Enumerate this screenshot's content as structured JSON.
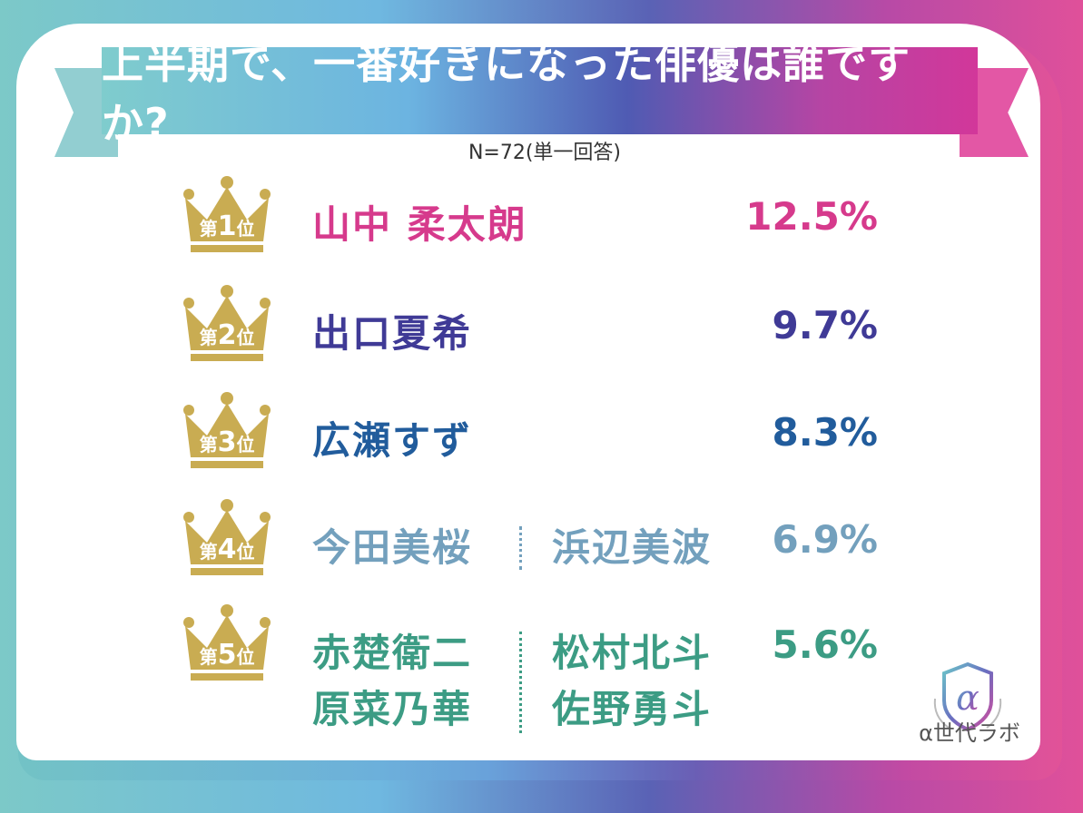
{
  "title": "上半期で、一番好きになった俳優は誰ですか?",
  "subtitle": "N=72(単一回答)",
  "colors": {
    "rank1": "#d63a8c",
    "rank2": "#3f3a96",
    "rank3": "#215c9c",
    "rank4": "#73a0bd",
    "rank5": "#3c9c84",
    "crown": "#c9ac52"
  },
  "chart_data": {
    "type": "table",
    "title": "上半期で、一番好きになった俳優は誰ですか?",
    "rows": [
      {
        "rank_label": {
          "pre": "第",
          "num": "1",
          "post": "位"
        },
        "names_left": [
          "山中 柔太朗"
        ],
        "names_right": [],
        "value": "12.5%"
      },
      {
        "rank_label": {
          "pre": "第",
          "num": "2",
          "post": "位"
        },
        "names_left": [
          "出口夏希"
        ],
        "names_right": [],
        "value": "9.7%"
      },
      {
        "rank_label": {
          "pre": "第",
          "num": "3",
          "post": "位"
        },
        "names_left": [
          "広瀬すず"
        ],
        "names_right": [],
        "value": "8.3%"
      },
      {
        "rank_label": {
          "pre": "第",
          "num": "4",
          "post": "位"
        },
        "names_left": [
          "今田美桜"
        ],
        "names_right": [
          "浜辺美波"
        ],
        "value": "6.9%"
      },
      {
        "rank_label": {
          "pre": "第",
          "num": "5",
          "post": "位"
        },
        "names_left": [
          "赤楚衛二",
          "原菜乃華"
        ],
        "names_right": [
          "松村北斗",
          "佐野勇斗"
        ],
        "value": "5.6%"
      }
    ]
  },
  "logo": {
    "text": "α世代ラボ",
    "mark": "α"
  }
}
